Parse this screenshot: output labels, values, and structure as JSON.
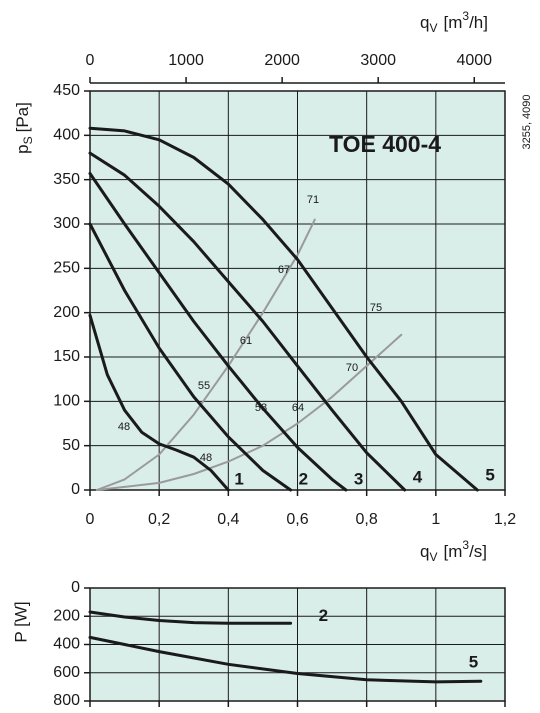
{
  "chart_data": [
    {
      "type": "line",
      "title": "TOE 400-4",
      "code": "3255, 4090",
      "x_label": {
        "symbol": "q",
        "subscript": "V",
        "unit": "[m",
        "superscript": "3",
        "unit_end": "/s]"
      },
      "x2_label": {
        "symbol": "q",
        "subscript": "V",
        "unit": "[m",
        "superscript": "3",
        "unit_end": "/h]"
      },
      "y_label": {
        "symbol": "p",
        "subscript": "S",
        "unit": "[Pa]"
      },
      "xlim": [
        0,
        1.2
      ],
      "xticks": [
        0,
        {
          "value": 0.2,
          "label": "0,2"
        },
        {
          "value": 0.4,
          "label": "0,4"
        },
        {
          "value": 0.6,
          "label": "0,6"
        },
        {
          "value": 0.8,
          "label": "0,8"
        },
        1,
        {
          "value": 1.2,
          "label": "1,2"
        }
      ],
      "x2lim": [
        0,
        4320
      ],
      "x2ticks": [
        0,
        1000,
        2000,
        3000,
        4000
      ],
      "ylim": [
        0,
        450
      ],
      "yticks": [
        0,
        50,
        100,
        150,
        200,
        250,
        300,
        350,
        400,
        450
      ],
      "grid": true,
      "series": [
        {
          "name": "1",
          "color": "#1a1a1a",
          "x": [
            0,
            0.05,
            0.1,
            0.15,
            0.2,
            0.25,
            0.3,
            0.35,
            0.4
          ],
          "values": [
            197,
            130,
            90,
            65,
            52,
            45,
            37,
            22,
            0
          ]
        },
        {
          "name": "2",
          "color": "#1a1a1a",
          "x": [
            0,
            0.1,
            0.2,
            0.3,
            0.4,
            0.5,
            0.58
          ],
          "values": [
            300,
            225,
            160,
            105,
            60,
            22,
            0
          ]
        },
        {
          "name": "3",
          "color": "#1a1a1a",
          "x": [
            0,
            0.1,
            0.2,
            0.3,
            0.4,
            0.5,
            0.6,
            0.7,
            0.74
          ],
          "values": [
            357,
            300,
            245,
            190,
            140,
            92,
            48,
            12,
            0
          ]
        },
        {
          "name": "4",
          "color": "#1a1a1a",
          "x": [
            0,
            0.1,
            0.2,
            0.3,
            0.4,
            0.5,
            0.6,
            0.7,
            0.8,
            0.91
          ],
          "values": [
            380,
            355,
            320,
            280,
            235,
            190,
            140,
            90,
            42,
            0
          ]
        },
        {
          "name": "5",
          "color": "#1a1a1a",
          "x": [
            0,
            0.1,
            0.2,
            0.3,
            0.4,
            0.5,
            0.6,
            0.7,
            0.8,
            0.9,
            1.0,
            1.12
          ],
          "values": [
            408,
            405,
            395,
            375,
            345,
            305,
            260,
            205,
            150,
            100,
            40,
            0
          ]
        }
      ],
      "efficiency_lines": [
        {
          "color": "#9a9a9a",
          "x": [
            0.02,
            0.1,
            0.2,
            0.3,
            0.4,
            0.5,
            0.6,
            0.65
          ],
          "values": [
            0,
            12,
            40,
            85,
            140,
            200,
            265,
            305
          ]
        },
        {
          "color": "#9a9a9a",
          "x": [
            0.02,
            0.2,
            0.3,
            0.4,
            0.5,
            0.6,
            0.7,
            0.8,
            0.9
          ],
          "values": [
            0,
            8,
            18,
            32,
            50,
            75,
            105,
            140,
            175
          ]
        }
      ],
      "efficiency_labels": [
        "48",
        "55",
        "61",
        "67",
        "71",
        "48",
        "58",
        "64",
        "70",
        "75"
      ]
    },
    {
      "type": "line",
      "y_label": "P [W]",
      "xlim": [
        0,
        1.2
      ],
      "ylim": [
        800,
        0
      ],
      "yticks": [
        0,
        200,
        400,
        600,
        800
      ],
      "grid": true,
      "series": [
        {
          "name": "2",
          "color": "#1a1a1a",
          "x": [
            0,
            0.1,
            0.2,
            0.3,
            0.4,
            0.58
          ],
          "values": [
            170,
            205,
            230,
            245,
            250,
            250
          ]
        },
        {
          "name": "5",
          "color": "#1a1a1a",
          "x": [
            0,
            0.2,
            0.4,
            0.6,
            0.8,
            1.0,
            1.13
          ],
          "values": [
            350,
            450,
            540,
            605,
            650,
            665,
            660
          ]
        }
      ]
    }
  ]
}
